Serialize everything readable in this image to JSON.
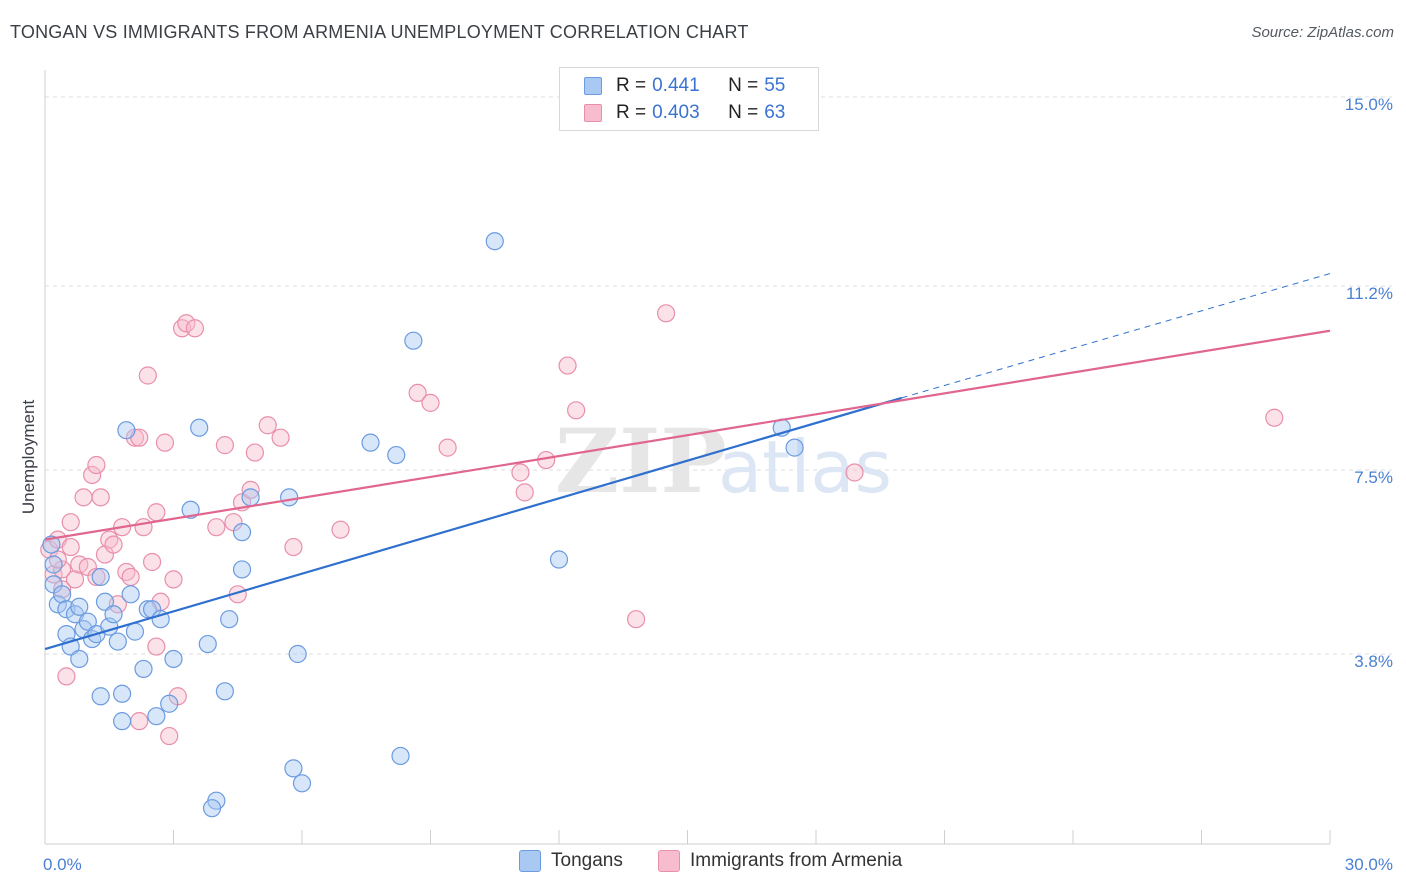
{
  "header": {
    "title": "TONGAN VS IMMIGRANTS FROM ARMENIA UNEMPLOYMENT CORRELATION CHART",
    "source": "Source: ZipAtlas.com"
  },
  "watermark": {
    "zip": "ZIP",
    "atlas": "atlas"
  },
  "legend": {
    "rows": [
      {
        "r_label": "R = ",
        "r_value": "0.441",
        "n_label": "N = ",
        "n_value": "55"
      },
      {
        "r_label": "R = ",
        "r_value": "0.403",
        "n_label": "N = ",
        "n_value": "63"
      }
    ]
  },
  "bottom_legend": {
    "series1": "Tongans",
    "series2": "Immigrants from Armenia"
  },
  "colors": {
    "tongans_fill": "#a9c8f2",
    "tongans_stroke": "#6b9be0",
    "tongans_line": "#2f70cf",
    "armenia_fill": "#f7bccd",
    "armenia_stroke": "#e98fab",
    "armenia_line": "#e0668f",
    "tick_text": "#4a7fd4",
    "grid": "#dddddd"
  },
  "chart_data": {
    "type": "scatter",
    "title": "TONGAN VS IMMIGRANTS FROM ARMENIA UNEMPLOYMENT CORRELATION CHART",
    "xlabel": "",
    "ylabel": "Unemployment",
    "xlim": [
      0,
      30
    ],
    "ylim": [
      0,
      15.5
    ],
    "x_tick_labels": {
      "min": "0.0%",
      "max": "30.0%"
    },
    "y_ticks": [
      {
        "value": 3.8,
        "label": "3.8%"
      },
      {
        "value": 7.5,
        "label": "7.5%"
      },
      {
        "value": 11.2,
        "label": "11.2%"
      },
      {
        "value": 15.0,
        "label": "15.0%"
      }
    ],
    "grid": true,
    "legend_position": "top-center",
    "series": [
      {
        "name": "Tongans",
        "r": 0.441,
        "n": 55,
        "trend": {
          "x0": 0,
          "y0": 3.9,
          "x1": 20,
          "y1": 8.95,
          "dashed_to_x": 30,
          "dashed_to_y": 11.45
        },
        "points": [
          [
            0.2,
            5.6
          ],
          [
            0.2,
            5.2
          ],
          [
            0.3,
            4.8
          ],
          [
            0.4,
            5.0
          ],
          [
            0.5,
            4.7
          ],
          [
            0.5,
            4.2
          ],
          [
            0.6,
            3.95
          ],
          [
            0.7,
            4.6
          ],
          [
            0.8,
            3.7
          ],
          [
            0.8,
            4.75
          ],
          [
            0.9,
            4.3
          ],
          [
            1.0,
            4.45
          ],
          [
            1.1,
            4.1
          ],
          [
            1.2,
            4.2
          ],
          [
            1.3,
            5.35
          ],
          [
            1.3,
            2.95
          ],
          [
            1.4,
            4.85
          ],
          [
            1.5,
            4.35
          ],
          [
            1.6,
            4.6
          ],
          [
            1.7,
            4.05
          ],
          [
            1.8,
            3.0
          ],
          [
            1.8,
            2.45
          ],
          [
            1.9,
            8.3
          ],
          [
            2.0,
            5.0
          ],
          [
            2.1,
            4.25
          ],
          [
            2.3,
            3.5
          ],
          [
            2.4,
            4.7
          ],
          [
            2.5,
            4.7
          ],
          [
            2.6,
            2.55
          ],
          [
            2.7,
            4.5
          ],
          [
            2.9,
            2.8
          ],
          [
            3.0,
            3.7
          ],
          [
            3.4,
            6.7
          ],
          [
            3.6,
            8.35
          ],
          [
            3.8,
            4.0
          ],
          [
            4.0,
            0.85
          ],
          [
            4.2,
            3.05
          ],
          [
            4.3,
            4.5
          ],
          [
            4.6,
            5.5
          ],
          [
            4.6,
            6.25
          ],
          [
            4.8,
            6.95
          ],
          [
            5.7,
            6.95
          ],
          [
            5.8,
            1.5
          ],
          [
            5.9,
            3.8
          ],
          [
            6.0,
            1.2
          ],
          [
            7.6,
            8.05
          ],
          [
            8.2,
            7.8
          ],
          [
            8.3,
            1.75
          ],
          [
            8.6,
            10.1
          ],
          [
            10.5,
            12.1
          ],
          [
            12.0,
            5.7
          ],
          [
            17.2,
            8.35
          ],
          [
            17.5,
            7.95
          ],
          [
            0.15,
            6.0
          ],
          [
            3.9,
            0.7
          ]
        ]
      },
      {
        "name": "Immigrants from Armenia",
        "r": 0.403,
        "n": 63,
        "trend": {
          "x0": 0,
          "y0": 6.1,
          "x1": 30,
          "y1": 10.3
        },
        "points": [
          [
            0.1,
            5.9
          ],
          [
            0.2,
            5.4
          ],
          [
            0.3,
            6.1
          ],
          [
            0.4,
            5.5
          ],
          [
            0.4,
            5.1
          ],
          [
            0.5,
            3.35
          ],
          [
            0.6,
            6.45
          ],
          [
            0.7,
            5.3
          ],
          [
            0.8,
            5.6
          ],
          [
            0.9,
            6.95
          ],
          [
            1.0,
            5.55
          ],
          [
            1.1,
            7.4
          ],
          [
            1.2,
            7.6
          ],
          [
            1.3,
            6.95
          ],
          [
            1.4,
            5.8
          ],
          [
            1.5,
            6.1
          ],
          [
            1.6,
            6.0
          ],
          [
            1.7,
            4.8
          ],
          [
            1.8,
            6.35
          ],
          [
            1.9,
            5.45
          ],
          [
            2.0,
            5.35
          ],
          [
            2.1,
            8.15
          ],
          [
            2.2,
            8.15
          ],
          [
            2.2,
            2.45
          ],
          [
            2.3,
            6.35
          ],
          [
            2.4,
            9.4
          ],
          [
            2.5,
            5.65
          ],
          [
            2.6,
            6.65
          ],
          [
            2.7,
            4.85
          ],
          [
            2.8,
            8.05
          ],
          [
            2.9,
            2.15
          ],
          [
            3.0,
            5.3
          ],
          [
            3.1,
            2.95
          ],
          [
            3.2,
            10.35
          ],
          [
            3.3,
            10.45
          ],
          [
            3.5,
            10.35
          ],
          [
            4.0,
            6.35
          ],
          [
            4.2,
            8.0
          ],
          [
            4.4,
            6.45
          ],
          [
            4.6,
            6.85
          ],
          [
            4.8,
            7.1
          ],
          [
            4.9,
            7.85
          ],
          [
            5.2,
            8.4
          ],
          [
            5.5,
            8.15
          ],
          [
            5.8,
            5.95
          ],
          [
            6.9,
            6.3
          ],
          [
            8.7,
            9.05
          ],
          [
            9.0,
            8.85
          ],
          [
            9.4,
            7.95
          ],
          [
            11.1,
            7.45
          ],
          [
            11.2,
            7.05
          ],
          [
            11.7,
            7.7
          ],
          [
            12.2,
            9.6
          ],
          [
            12.4,
            8.7
          ],
          [
            13.8,
            4.5
          ],
          [
            14.5,
            10.65
          ],
          [
            18.9,
            7.45
          ],
          [
            28.7,
            8.55
          ],
          [
            0.3,
            5.7
          ],
          [
            0.6,
            5.95
          ],
          [
            1.2,
            5.35
          ],
          [
            2.6,
            3.95
          ],
          [
            4.5,
            5.0
          ]
        ]
      }
    ]
  }
}
